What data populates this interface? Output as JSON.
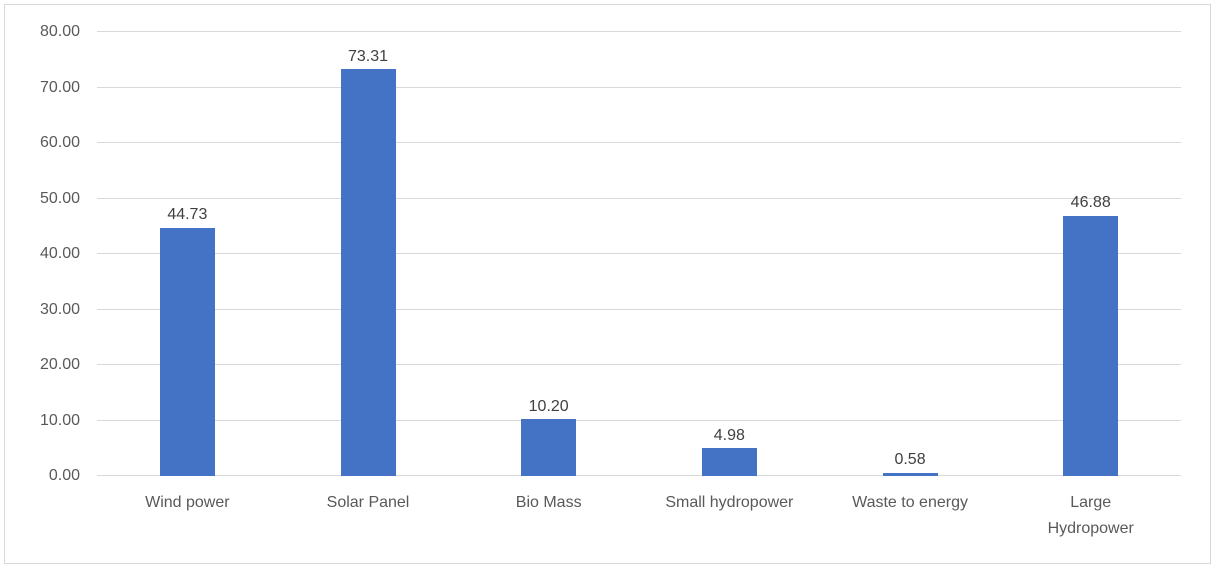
{
  "chart_data": {
    "type": "bar",
    "title": "",
    "xlabel": "",
    "ylabel": "",
    "categories": [
      "Wind power",
      "Solar Panel",
      "Bio Mass",
      "Small hydropower",
      "Waste to energy",
      "Large\nHydropower"
    ],
    "values": [
      44.73,
      73.31,
      10.2,
      4.98,
      0.58,
      46.88
    ],
    "data_labels": [
      "44.73",
      "73.31",
      "10.20",
      "4.98",
      "0.58",
      "46.88"
    ],
    "ylim": [
      0,
      80
    ],
    "ytick_values": [
      0,
      10,
      20,
      30,
      40,
      50,
      60,
      70,
      80
    ],
    "ytick_labels": [
      "0.00",
      "10.00",
      "20.00",
      "30.00",
      "40.00",
      "50.00",
      "60.00",
      "70.00",
      "80.00"
    ],
    "grid": true,
    "legend": false,
    "colors": {
      "bar": "#4472C4",
      "gridline": "#D9D9D9",
      "axis_text": "#595959",
      "data_label_text": "#404040",
      "chart_border": "#D9D9D9",
      "background": "#FFFFFF"
    }
  }
}
